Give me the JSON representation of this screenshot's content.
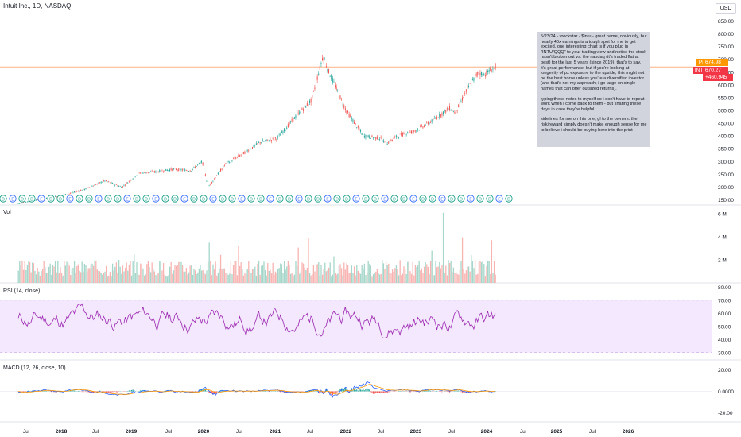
{
  "header": {
    "symbol_title": "Intuit Inc., 1D, NASDAQ",
    "currency_button": "USD"
  },
  "note": {
    "paragraphs": [
      "5/23/24 - vrockstar - $intu - great name, obviously, but nearly 40x earnings is a tough spot for me to get excited. one interesting chart is if you plug in \"INTU/QQQ\" to your trading view and notice the stock hasn't broken out vs. the nasdaq (it's traded flat at best) for the last 5 years (since 2019). that's to say, it's great performance, but if you're looking at longevity of px exposure to the upside, this might not be the best horse unless you're a diversified investor (and that's not my approach, i go large on single names that can offer outsized returns).",
      "typing these notes to myself so i don't have to repeat work when i come back to them - but sharing these days in case they're helpful.",
      "sidelines for me on this one, gl to the owners. the risk/reward simply doesn't make enough sense for me to believe i should be buying here into the print"
    ]
  },
  "price_tags": {
    "pre_label": "Pre",
    "pre_value": "674.98",
    "pre_color": "#ff9800",
    "symbol_label": "INTU",
    "last_value": "670.27",
    "change_value": "+460.945",
    "last_color": "#f23645"
  },
  "panes": {
    "volume_label": "Vol",
    "rsi_label": "RSI (14, close)",
    "macd_label": "MACD (12, 26, close, 10)"
  },
  "colors": {
    "up": "#26a69a",
    "down": "#ef5350",
    "rsi_line": "#9c27b0",
    "rsi_band": "#f3e8fd",
    "macd_line": "#2962ff",
    "signal_line": "#ff9800",
    "price_line": "#ffb085"
  },
  "chart_data": [
    {
      "type": "line",
      "title": "Intuit Inc., 1D, NASDAQ",
      "y_axis_side": "right",
      "y_ticks": [
        "850.00",
        "800.00",
        "750.00",
        "700.00",
        "650.00",
        "600.00",
        "550.00",
        "500.00",
        "450.00",
        "400.00",
        "350.00",
        "300.00",
        "250.00",
        "200.00",
        "150.00"
      ],
      "ylim": [
        130,
        870
      ],
      "x_ticks": [
        "Jul",
        "2018",
        "Jul",
        "2019",
        "Jul",
        "2020",
        "Jul",
        "2021",
        "Jul",
        "2022",
        "Jul",
        "2023",
        "Jul",
        "2024",
        "Jul",
        "2025",
        "Jul",
        "2026"
      ],
      "series": [
        {
          "x": [
            "2017-06",
            "2017-09",
            "2017-12",
            "2018-03",
            "2018-06",
            "2018-09",
            "2018-12",
            "2019-03",
            "2019-06",
            "2019-09",
            "2019-12",
            "2020-02",
            "2020-03",
            "2020-06",
            "2020-09",
            "2020-12",
            "2021-03",
            "2021-06",
            "2021-09",
            "2021-11",
            "2021-12",
            "2022-03",
            "2022-06",
            "2022-09",
            "2022-10",
            "2022-12",
            "2023-03",
            "2023-06",
            "2023-09",
            "2023-10",
            "2023-12",
            "2024-02",
            "2024-03",
            "2024-05"
          ],
          "values": [
            135,
            150,
            160,
            175,
            195,
            225,
            200,
            255,
            260,
            270,
            265,
            300,
            200,
            290,
            330,
            375,
            390,
            470,
            540,
            715,
            650,
            500,
            400,
            390,
            370,
            400,
            420,
            460,
            510,
            490,
            580,
            650,
            640,
            670
          ]
        }
      ],
      "horizontal_line": 670.27
    },
    {
      "type": "bar",
      "title": "Vol",
      "y_ticks": [
        "6 M",
        "4 M",
        "2 M"
      ],
      "ylim": [
        0,
        6.5
      ]
    },
    {
      "type": "line",
      "title": "RSI (14, close)",
      "y_ticks": [
        "80.00",
        "70.00",
        "60.00",
        "50.00",
        "40.00",
        "30.00"
      ],
      "ylim": [
        25,
        82
      ],
      "band": [
        30,
        70
      ]
    },
    {
      "type": "line",
      "title": "MACD (12, 26, close, 10)",
      "y_ticks": [
        "20.00",
        "0.0000",
        "-20.00"
      ],
      "ylim": [
        -28,
        28
      ]
    }
  ]
}
